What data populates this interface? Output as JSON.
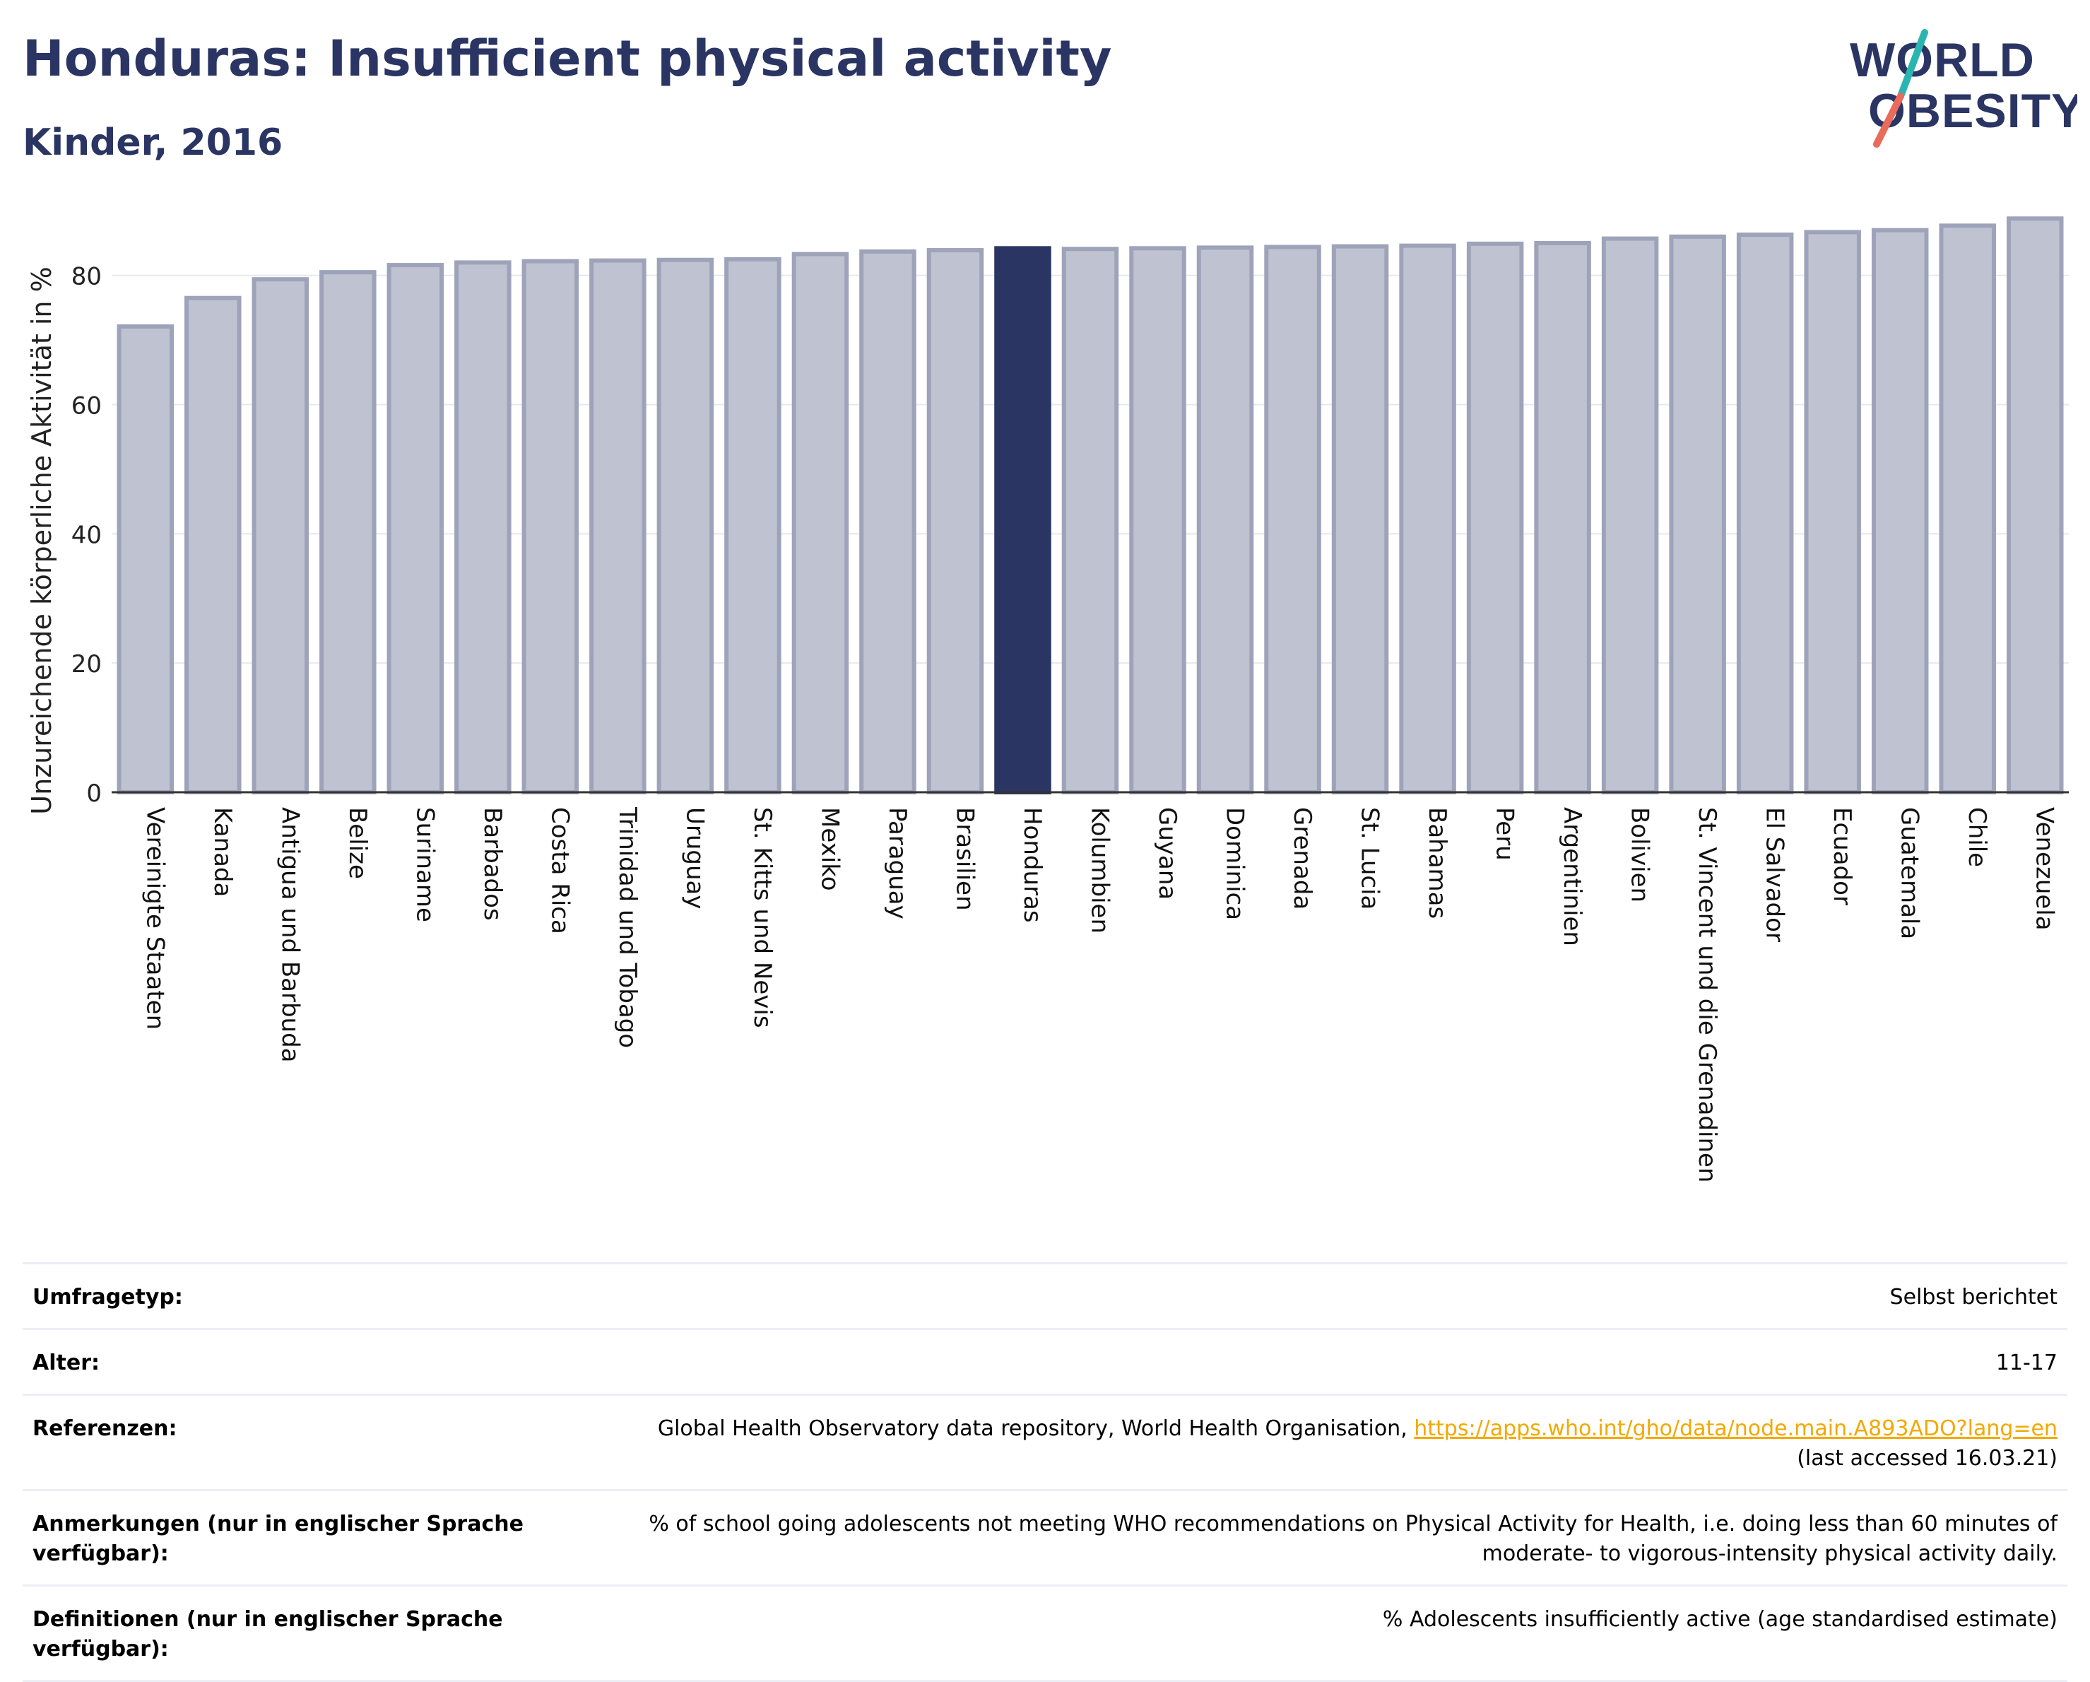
{
  "header": {
    "title": "Honduras: Insufficient physical activity",
    "subtitle": "Kinder, 2016"
  },
  "logo": {
    "line1": "WORLD",
    "line2": "OBESITY"
  },
  "colors": {
    "highlight": "#2b3563",
    "bar_fill": "#bfc2d0",
    "bar_stroke": "#9ea3ba",
    "title": "#2b3563",
    "link": "#f2a900",
    "logo_teal": "#2bb5b0",
    "logo_coral": "#e86b5b"
  },
  "chart_data": {
    "type": "bar",
    "ylabel": "Unzureichende körperliche Aktivität in %",
    "xlabel": "",
    "ylim": [
      0,
      92
    ],
    "yticks": [
      0,
      20,
      40,
      60,
      80
    ],
    "grid": true,
    "highlight": "Honduras",
    "categories": [
      "Vereinigte Staaten",
      "Kanada",
      "Antigua und Barbuda",
      "Belize",
      "Suriname",
      "Barbados",
      "Costa Rica",
      "Trinidad und Tobago",
      "Uruguay",
      "St. Kitts und Nevis",
      "Mexiko",
      "Paraguay",
      "Brasilien",
      "Honduras",
      "Kolumbien",
      "Guyana",
      "Dominica",
      "Grenada",
      "St. Lucia",
      "Bahamas",
      "Peru",
      "Argentinien",
      "Bolivien",
      "St. Vincent und die Grenadinen",
      "El Salvador",
      "Ecuador",
      "Guatemala",
      "Chile",
      "Venezuela"
    ],
    "values": [
      72.1,
      76.5,
      79.4,
      80.5,
      81.6,
      82.0,
      82.2,
      82.3,
      82.4,
      82.5,
      83.3,
      83.7,
      83.9,
      84.2,
      84.1,
      84.2,
      84.3,
      84.4,
      84.5,
      84.6,
      84.9,
      85.0,
      85.7,
      86.0,
      86.3,
      86.7,
      87.0,
      87.7,
      88.8
    ]
  },
  "meta": [
    {
      "key": "Umfragetyp:",
      "value": "Selbst berichtet"
    },
    {
      "key": "Alter:",
      "value": "11-17"
    },
    {
      "key": "Referenzen:",
      "value": "Global Health Observatory data repository, World Health Organisation, ",
      "link": "https://apps.who.int/gho/data/node.main.A893ADO?lang=en",
      "value_after": "(last accessed 16.03.21)"
    },
    {
      "key": "Anmerkungen (nur in englischer Sprache verfügbar):",
      "value": "% of school going adolescents not meeting WHO recommendations on Physical Activity for Health, i.e. doing less than 60 minutes of moderate- to vigorous-intensity physical activity daily."
    },
    {
      "key": "Definitionen (nur in englischer Sprache verfügbar):",
      "value": "% Adolescents insufficiently active (age standardised estimate)"
    }
  ]
}
